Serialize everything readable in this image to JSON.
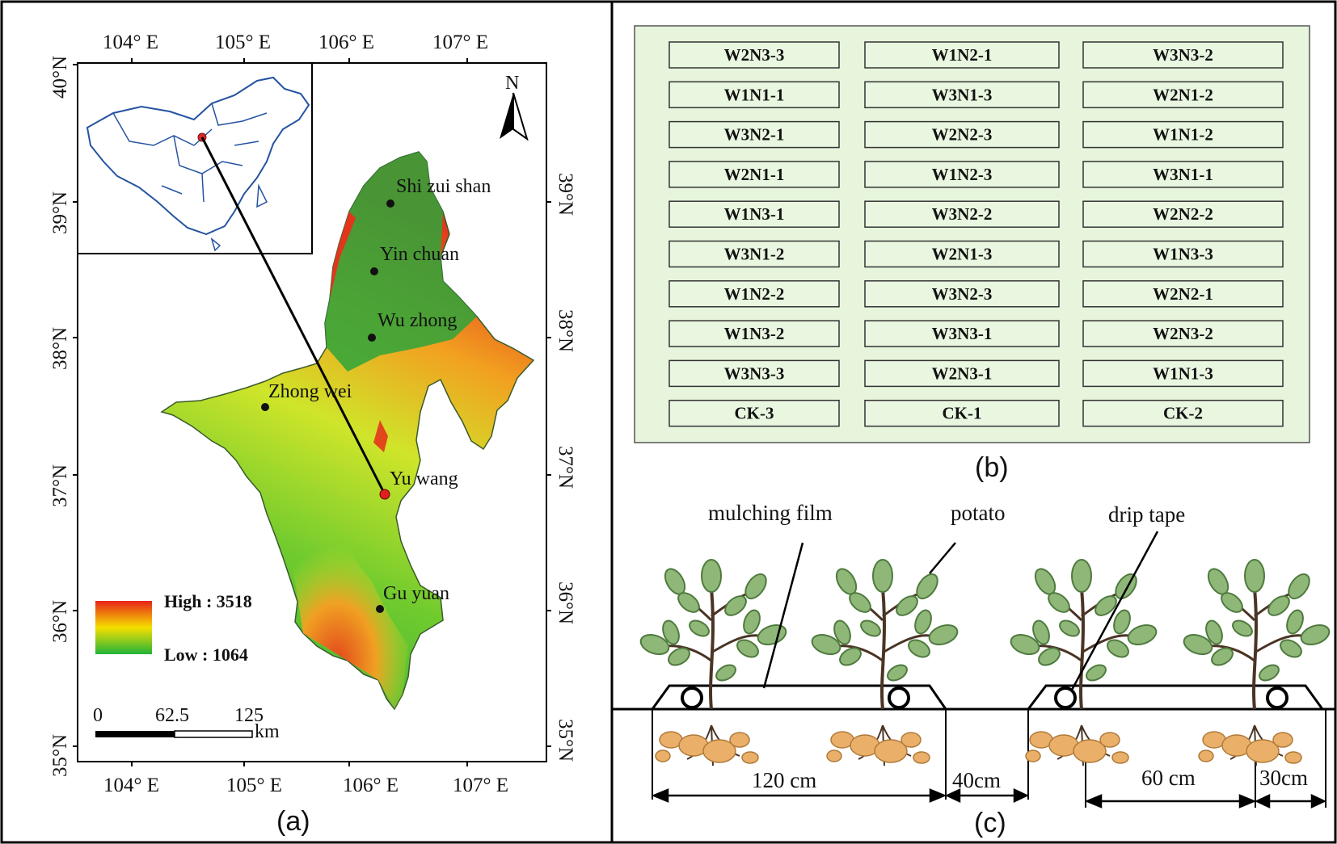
{
  "panel_a": {
    "label": "(a)",
    "top_lon_ticks": [
      "104° E",
      "105° E",
      "106° E",
      "107° E"
    ],
    "bottom_lon_ticks": [
      "104° E",
      "105° E",
      "106° E",
      "107° E"
    ],
    "left_lat_ticks": [
      "40°N",
      "39°N",
      "38°N",
      "37°N",
      "36°N",
      "35°N"
    ],
    "right_lat_ticks": [
      "39°N",
      "38°N",
      "37°N",
      "36°N",
      "35°N"
    ],
    "north_label": "N",
    "cities": [
      "Shi zui shan",
      "Yin chuan",
      "Wu zhong",
      "Zhong wei",
      "Yu wang",
      "Gu yuan"
    ],
    "legend": {
      "high": "High : 3518",
      "low": "Low : 1064",
      "colors": [
        "#e8231a",
        "#f5e000",
        "#22b33a"
      ]
    },
    "scalebar": {
      "ticks": [
        "0",
        "62.5",
        "125"
      ],
      "unit": "km"
    }
  },
  "panel_b": {
    "label": "(b)",
    "plots": [
      [
        "W2N3-3",
        "W1N2-1",
        "W3N3-2"
      ],
      [
        "W1N1-1",
        "W3N1-3",
        "W2N1-2"
      ],
      [
        "W3N2-1",
        "W2N2-3",
        "W1N1-2"
      ],
      [
        "W2N1-1",
        "W1N2-3",
        "W3N1-1"
      ],
      [
        "W1N3-1",
        "W3N2-2",
        "W2N2-2"
      ],
      [
        "W3N1-2",
        "W2N1-3",
        "W1N3-3"
      ],
      [
        "W1N2-2",
        "W3N2-3",
        "W2N2-1"
      ],
      [
        "W1N3-2",
        "W3N3-1",
        "W2N3-2"
      ],
      [
        "W3N3-3",
        "W2N3-1",
        "W1N1-3"
      ],
      [
        "CK-3",
        "CK-1",
        "CK-2"
      ]
    ]
  },
  "panel_c": {
    "label": "(c)",
    "labels": {
      "film": "mulching film",
      "potato": "potato",
      "drip": "drip tape"
    },
    "dims": {
      "bed": "120 cm",
      "gap": "40cm",
      "row": "60 cm",
      "edge": "30cm"
    }
  }
}
